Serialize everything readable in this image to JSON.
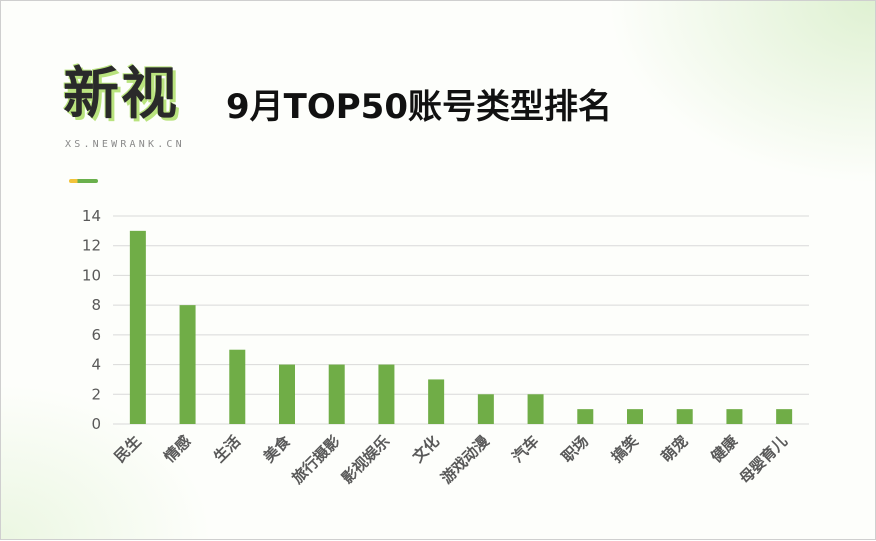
{
  "brand": {
    "logo_text": "新视",
    "url": "XS.NEWRANK.CN"
  },
  "header": {
    "title": "9月TOP50账号类型排名"
  },
  "colors": {
    "bar": "#70ad47",
    "accent_green": "#6ab04c",
    "accent_yellow": "#f2c33a"
  },
  "chart_data": {
    "type": "bar",
    "title": "9月TOP50账号类型排名",
    "xlabel": "",
    "ylabel": "",
    "categories": [
      "民生",
      "情感",
      "生活",
      "美食",
      "旅行摄影",
      "影视娱乐",
      "文化",
      "游戏动漫",
      "汽车",
      "职场",
      "搞笑",
      "萌宠",
      "健康",
      "母婴育儿"
    ],
    "values": [
      13,
      8,
      5,
      4,
      4,
      4,
      3,
      2,
      2,
      1,
      1,
      1,
      1,
      1
    ],
    "ylim": [
      0,
      14
    ],
    "yticks": [
      0,
      2,
      4,
      6,
      8,
      10,
      12,
      14
    ],
    "grid": true,
    "legend": "none"
  }
}
